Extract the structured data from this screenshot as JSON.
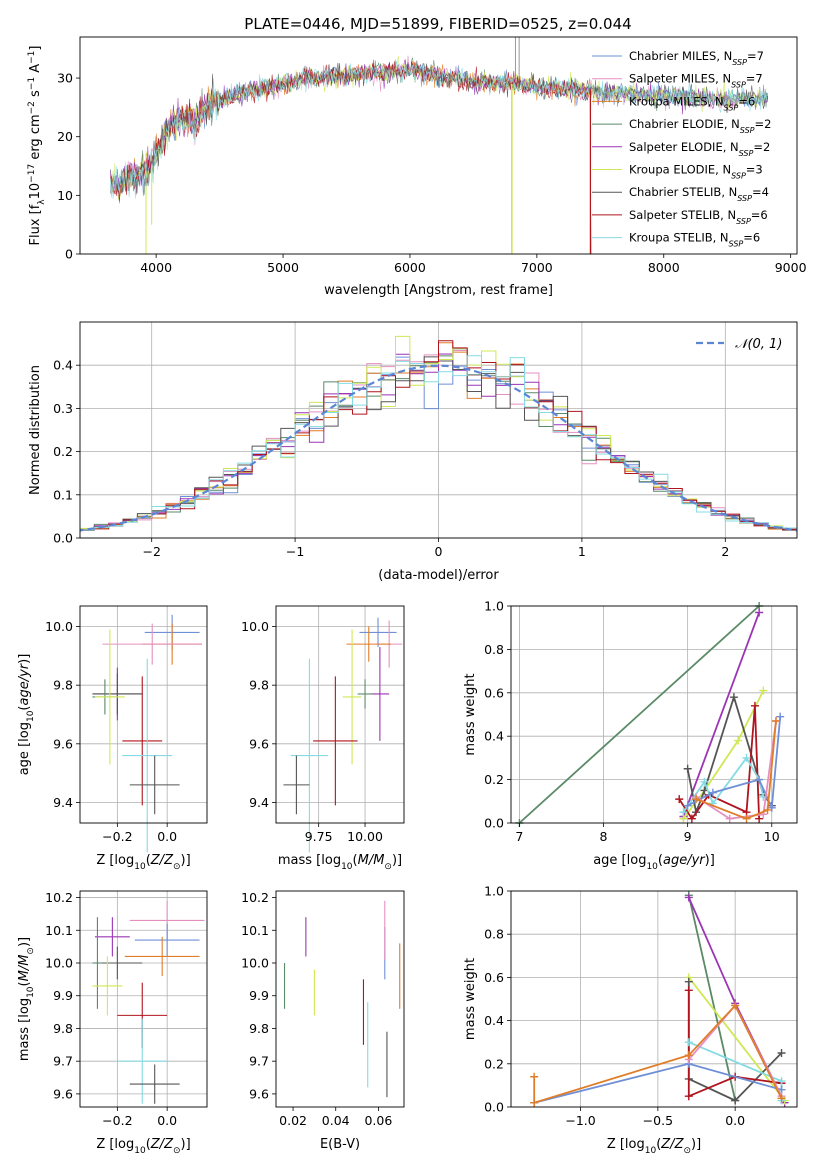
{
  "figure_title": "PLATE=0446, MJD=51899, FIBERID=0525, z=0.044",
  "colors": {
    "Chabrier MILES": "#6f8fd6",
    "Salpeter MILES": "#e58fc1",
    "Kroupa MILES": "#e07d28",
    "Chabrier ELODIE": "#5a8a66",
    "Salpeter ELODIE": "#9b35b5",
    "Kroupa ELODIE": "#cfe856",
    "Chabrier STELIB": "#555555",
    "Salpeter STELIB": "#b0141e",
    "Kroupa STELIB": "#84dbe3"
  },
  "chart_data": [
    {
      "id": "spectrum",
      "type": "line",
      "title": "PLATE=0446, MJD=51899, FIBERID=0525, z=0.044",
      "xlabel": "wavelength [Angstrom, rest frame]",
      "ylabel": "Flux [f_λ 10^-17 erg cm^-2 s^-1 A^-1]",
      "xlim": [
        3400,
        9050
      ],
      "ylim": [
        0,
        37
      ],
      "xticks": [
        "4000",
        "5000",
        "6000",
        "7000",
        "8000",
        "9000"
      ],
      "yticks": [
        "0",
        "10",
        "20",
        "30"
      ],
      "grid": false,
      "legend_position": "top-right",
      "continuum": {
        "x": [
          3650,
          3700,
          3800,
          3900,
          3950,
          4000,
          4100,
          4200,
          4300,
          4400,
          4600,
          4800,
          5000,
          5200,
          5500,
          5800,
          6000,
          6200,
          6500,
          6800,
          7000,
          7300,
          7600,
          8000,
          8400,
          8800
        ],
        "y": [
          12,
          11.5,
          13,
          14,
          14.5,
          17,
          22,
          23,
          22.5,
          25,
          27,
          28,
          29,
          30,
          30.5,
          31,
          31.5,
          30.5,
          29.5,
          29,
          28.5,
          28,
          27.5,
          27,
          26.5,
          26.5
        ]
      },
      "series": [
        {
          "name": "Chabrier MILES, N_SSP=7",
          "label": "Chabrier MILES, N",
          "nssp": "=7"
        },
        {
          "name": "Salpeter MILES, N_SSP=7",
          "label": "Salpeter MILES, N",
          "nssp": "=7"
        },
        {
          "name": "Kroupa MILES, N_SSP=6",
          "label": "Kroupa MILES, N",
          "nssp": "=6"
        },
        {
          "name": "Chabrier ELODIE, N_SSP=2",
          "label": "Chabrier ELODIE, N",
          "nssp": "=2"
        },
        {
          "name": "Salpeter ELODIE, N_SSP=2",
          "label": "Salpeter ELODIE, N",
          "nssp": "=2"
        },
        {
          "name": "Kroupa ELODIE, N_SSP=3",
          "label": "Kroupa ELODIE, N",
          "nssp": "=3"
        },
        {
          "name": "Chabrier STELIB, N_SSP=4",
          "label": "Chabrier STELIB, N",
          "nssp": "=4"
        },
        {
          "name": "Salpeter STELIB, N_SSP=6",
          "label": "Salpeter STELIB, N",
          "nssp": "=6"
        },
        {
          "name": "Kroupa STELIB, N_SSP=6",
          "label": "Kroupa STELIB, N",
          "nssp": "=6"
        }
      ],
      "legend_subscript": "SSP"
    },
    {
      "id": "residuals",
      "type": "histogram",
      "xlabel": "(data-model)/error",
      "ylabel": "Normed distribution",
      "xlim": [
        -2.5,
        2.5
      ],
      "ylim": [
        0,
        0.5
      ],
      "xticks": [
        "−2",
        "−1",
        "0",
        "1",
        "2"
      ],
      "yticks": [
        "0.0",
        "0.1",
        "0.2",
        "0.3",
        "0.4"
      ],
      "grid": true,
      "legend_position": "top-right",
      "reference_curve": "N(0,1)",
      "legend_label": "𝒩(0, 1)",
      "bin_width": 0.1
    },
    {
      "id": "age-vs-Z",
      "type": "errorbar",
      "xlabel": "Z [log10(Z/Z⊙)]",
      "ylabel": "age  [log10(age/yr)]",
      "xlim": [
        -0.35,
        0.16
      ],
      "ylim": [
        9.33,
        10.07
      ],
      "xticks": [
        "−0.2",
        "0.0"
      ],
      "yticks": [
        "9.4",
        "9.6",
        "9.8",
        "10.0"
      ],
      "grid": true,
      "points": [
        {
          "series": "Chabrier MILES",
          "x": 0.02,
          "xerr": 0.11,
          "y": 9.98,
          "yerr": 0.06
        },
        {
          "series": "Kroupa MILES",
          "x": 0.02,
          "xerr": 0.12,
          "y": 9.94,
          "yerr": 0.07
        },
        {
          "series": "Salpeter MILES",
          "x": -0.06,
          "xerr": 0.2,
          "y": 9.94,
          "yerr": 0.07
        },
        {
          "series": "Salpeter ELODIE",
          "x": -0.2,
          "xerr": 0.1,
          "y": 9.77,
          "yerr": 0.09
        },
        {
          "series": "Chabrier STELIB",
          "x": -0.2,
          "xerr": 0.1,
          "y": 9.77,
          "yerr": 0.07
        },
        {
          "series": "Chabrier ELODIE",
          "x": -0.25,
          "xerr": 0.05,
          "y": 9.76,
          "yerr": 0.06
        },
        {
          "series": "Kroupa ELODIE",
          "x": -0.23,
          "xerr": 0.06,
          "y": 9.76,
          "yerr": 0.23
        },
        {
          "series": "Salpeter STELIB",
          "x": -0.1,
          "xerr": 0.08,
          "y": 9.61,
          "yerr": 0.22
        },
        {
          "series": "Kroupa STELIB",
          "x": -0.08,
          "xerr": 0.1,
          "y": 9.56,
          "yerr": 0.33
        },
        {
          "series": "Chabrier STELIB",
          "x": -0.05,
          "xerr": 0.1,
          "y": 9.46,
          "yerr": 0.1
        }
      ]
    },
    {
      "id": "age-vs-mass",
      "type": "errorbar",
      "xlabel": "mass [log10(M/M⊙)]",
      "ylabel": "",
      "xlim": [
        9.52,
        10.21
      ],
      "ylim": [
        9.33,
        10.07
      ],
      "xticks": [
        "9.75",
        "10.00"
      ],
      "yticks": [
        "9.4",
        "9.6",
        "9.8",
        "10.0"
      ],
      "grid": true,
      "points": [
        {
          "series": "Chabrier MILES",
          "x": 10.07,
          "xerr": 0.1,
          "y": 9.98,
          "yerr": 0.05
        },
        {
          "series": "Salpeter MILES",
          "x": 10.13,
          "xerr": 0.07,
          "y": 9.94,
          "yerr": 0.08
        },
        {
          "series": "Kroupa MILES",
          "x": 10.02,
          "xerr": 0.12,
          "y": 9.94,
          "yerr": 0.06
        },
        {
          "series": "Salpeter ELODIE",
          "x": 10.08,
          "xerr": 0.05,
          "y": 9.77,
          "yerr": 0.16
        },
        {
          "series": "Chabrier ELODIE",
          "x": 10.0,
          "xerr": 0.04,
          "y": 9.77,
          "yerr": 0.05
        },
        {
          "series": "Kroupa ELODIE",
          "x": 9.93,
          "xerr": 0.05,
          "y": 9.76,
          "yerr": 0.23
        },
        {
          "series": "Salpeter STELIB",
          "x": 9.84,
          "xerr": 0.12,
          "y": 9.61,
          "yerr": 0.22
        },
        {
          "series": "Kroupa STELIB",
          "x": 9.7,
          "xerr": 0.1,
          "y": 9.56,
          "yerr": 0.33
        },
        {
          "series": "Chabrier STELIB",
          "x": 9.63,
          "xerr": 0.07,
          "y": 9.46,
          "yerr": 0.1
        }
      ]
    },
    {
      "id": "massweight-vs-age",
      "type": "line",
      "xlabel": "age  [log10(age/yr)]",
      "ylabel": "mass weight",
      "xlim": [
        6.9,
        10.3
      ],
      "ylim": [
        0,
        1
      ],
      "xticks": [
        "7",
        "8",
        "9",
        "10"
      ],
      "yticks": [
        "0.0",
        "0.2",
        "0.4",
        "0.6",
        "0.8",
        "1.0"
      ],
      "grid": true,
      "series": [
        {
          "name": "Chabrier ELODIE",
          "x": [
            7.0,
            9.85
          ],
          "y": [
            0.0,
            1.0
          ]
        },
        {
          "name": "Salpeter ELODIE",
          "x": [
            8.95,
            9.85
          ],
          "y": [
            0.03,
            0.97
          ]
        },
        {
          "name": "Kroupa ELODIE",
          "x": [
            8.95,
            9.2,
            9.6,
            9.9
          ],
          "y": [
            0.02,
            0.15,
            0.38,
            0.61
          ]
        },
        {
          "name": "Chabrier STELIB",
          "x": [
            9.0,
            9.1,
            9.2,
            9.55,
            9.9,
            10.0
          ],
          "y": [
            0.25,
            0.05,
            0.15,
            0.58,
            0.13,
            0.08
          ]
        },
        {
          "name": "Salpeter STELIB",
          "x": [
            8.9,
            9.05,
            9.25,
            9.7,
            9.8,
            9.85
          ],
          "y": [
            0.11,
            0.02,
            0.13,
            0.05,
            0.54,
            0.02
          ]
        },
        {
          "name": "Kroupa STELIB",
          "x": [
            8.95,
            9.2,
            9.3,
            9.7,
            9.85,
            9.9
          ],
          "y": [
            0.05,
            0.19,
            0.09,
            0.3,
            0.2,
            0.12
          ]
        },
        {
          "name": "Chabrier MILES",
          "x": [
            9.0,
            9.3,
            9.85,
            10.0,
            10.1
          ],
          "y": [
            0.08,
            0.14,
            0.2,
            0.07,
            0.49
          ]
        },
        {
          "name": "Salpeter MILES",
          "x": [
            9.1,
            9.5,
            9.9,
            10.05
          ],
          "y": [
            0.12,
            0.02,
            0.04,
            0.47
          ]
        },
        {
          "name": "Kroupa MILES",
          "x": [
            9.1,
            9.7,
            9.95,
            10.05
          ],
          "y": [
            0.11,
            0.02,
            0.06,
            0.47
          ]
        }
      ]
    },
    {
      "id": "mass-vs-Z",
      "type": "errorbar",
      "xlabel": "Z [log10(Z/Z⊙)]",
      "ylabel": "mass [log10(M/M⊙)]",
      "xlim": [
        -0.35,
        0.16
      ],
      "ylim": [
        9.56,
        10.22
      ],
      "xticks": [
        "−0.2",
        "0.0"
      ],
      "yticks": [
        "9.6",
        "9.7",
        "9.8",
        "9.9",
        "10.0",
        "10.1",
        "10.2"
      ],
      "grid": true,
      "points": [
        {
          "series": "Salpeter MILES",
          "x": 0.0,
          "xerr": 0.15,
          "y": 10.13,
          "yerr": 0.06
        },
        {
          "series": "Salpeter ELODIE",
          "x": -0.22,
          "xerr": 0.07,
          "y": 10.08,
          "yerr": 0.06
        },
        {
          "series": "Chabrier MILES",
          "x": 0.0,
          "xerr": 0.13,
          "y": 10.07,
          "yerr": 0.05
        },
        {
          "series": "Kroupa MILES",
          "x": -0.02,
          "xerr": 0.15,
          "y": 10.02,
          "yerr": 0.06
        },
        {
          "series": "Chabrier STELIB",
          "x": -0.2,
          "xerr": 0.1,
          "y": 10.0,
          "yerr": 0.05
        },
        {
          "series": "Chabrier ELODIE",
          "x": -0.28,
          "xerr": 0.02,
          "y": 10.0,
          "yerr": 0.14
        },
        {
          "series": "Kroupa ELODIE",
          "x": -0.24,
          "xerr": 0.06,
          "y": 9.93,
          "yerr": 0.09
        },
        {
          "series": "Salpeter STELIB",
          "x": -0.1,
          "xerr": 0.1,
          "y": 9.84,
          "yerr": 0.1
        },
        {
          "series": "Kroupa STELIB",
          "x": -0.1,
          "xerr": 0.1,
          "y": 9.7,
          "yerr": 0.13
        },
        {
          "series": "Chabrier STELIB",
          "x": -0.05,
          "xerr": 0.1,
          "y": 9.63,
          "yerr": 0.06
        }
      ]
    },
    {
      "id": "mass-vs-EBV",
      "type": "errorbar",
      "xlabel": "E(B-V)",
      "ylabel": "",
      "xlim": [
        0.012,
        0.072
      ],
      "ylim": [
        9.56,
        10.22
      ],
      "xticks": [
        "0.02",
        "0.04",
        "0.06"
      ],
      "yticks": [
        "9.6",
        "9.7",
        "9.8",
        "9.9",
        "10.0",
        "10.1",
        "10.2"
      ],
      "grid": false,
      "points": [
        {
          "series": "Chabrier ELODIE",
          "x": 0.016,
          "y": 9.93,
          "yerr": 0.07
        },
        {
          "series": "Salpeter ELODIE",
          "x": 0.026,
          "y": 10.08,
          "yerr": 0.06
        },
        {
          "series": "Kroupa ELODIE",
          "x": 0.03,
          "y": 9.91,
          "yerr": 0.07
        },
        {
          "series": "Salpeter STELIB",
          "x": 0.053,
          "y": 9.85,
          "yerr": 0.1
        },
        {
          "series": "Kroupa STELIB",
          "x": 0.055,
          "y": 9.75,
          "yerr": 0.13
        },
        {
          "series": "Chabrier MILES",
          "x": 0.063,
          "y": 10.03,
          "yerr": 0.08
        },
        {
          "series": "Salpeter MILES",
          "x": 0.063,
          "y": 10.1,
          "yerr": 0.09
        },
        {
          "series": "Chabrier STELIB",
          "x": 0.064,
          "y": 9.69,
          "yerr": 0.1
        },
        {
          "series": "Kroupa MILES",
          "x": 0.07,
          "y": 9.96,
          "yerr": 0.1
        }
      ]
    },
    {
      "id": "massweight-vs-Z",
      "type": "line",
      "xlabel": "Z [log10(Z/Z⊙)]",
      "ylabel": "mass weight",
      "xlim": [
        -1.45,
        0.4
      ],
      "ylim": [
        0,
        1
      ],
      "xticks": [
        "−1.0",
        "−0.5",
        "0.0"
      ],
      "yticks": [
        "0.0",
        "0.2",
        "0.4",
        "0.6",
        "0.8",
        "1.0"
      ],
      "grid": true,
      "series": [
        {
          "name": "Chabrier ELODIE",
          "x": [
            -0.3,
            0.0
          ],
          "y": [
            0.98,
            0.03
          ]
        },
        {
          "name": "Salpeter ELODIE",
          "x": [
            -0.3,
            0.0,
            0.32
          ],
          "y": [
            0.97,
            0.48,
            0.02
          ]
        },
        {
          "name": "Kroupa ELODIE",
          "x": [
            -0.3,
            0.32
          ],
          "y": [
            0.6,
            0.03
          ]
        },
        {
          "name": "Chabrier STELIB",
          "x": [
            -0.3,
            -0.3,
            0.0,
            0.3
          ],
          "y": [
            0.58,
            0.13,
            0.03,
            0.25
          ]
        },
        {
          "name": "Salpeter STELIB",
          "x": [
            -0.3,
            -0.3,
            0.0,
            0.3
          ],
          "y": [
            0.54,
            0.05,
            0.14,
            0.11
          ]
        },
        {
          "name": "Kroupa STELIB",
          "x": [
            -0.3,
            0.3,
            0.3
          ],
          "y": [
            0.3,
            0.12,
            0.03
          ]
        },
        {
          "name": "Chabrier MILES",
          "x": [
            -1.3,
            -0.3,
            0.3
          ],
          "y": [
            0.02,
            0.2,
            0.08
          ]
        },
        {
          "name": "Salpeter MILES",
          "x": [
            -0.3,
            0.0,
            0.3
          ],
          "y": [
            0.22,
            0.47,
            0.05
          ]
        },
        {
          "name": "Kroupa MILES",
          "x": [
            -1.3,
            -1.3,
            -0.3,
            0.0,
            0.3
          ],
          "y": [
            0.14,
            0.02,
            0.24,
            0.47,
            0.04
          ]
        }
      ]
    }
  ]
}
